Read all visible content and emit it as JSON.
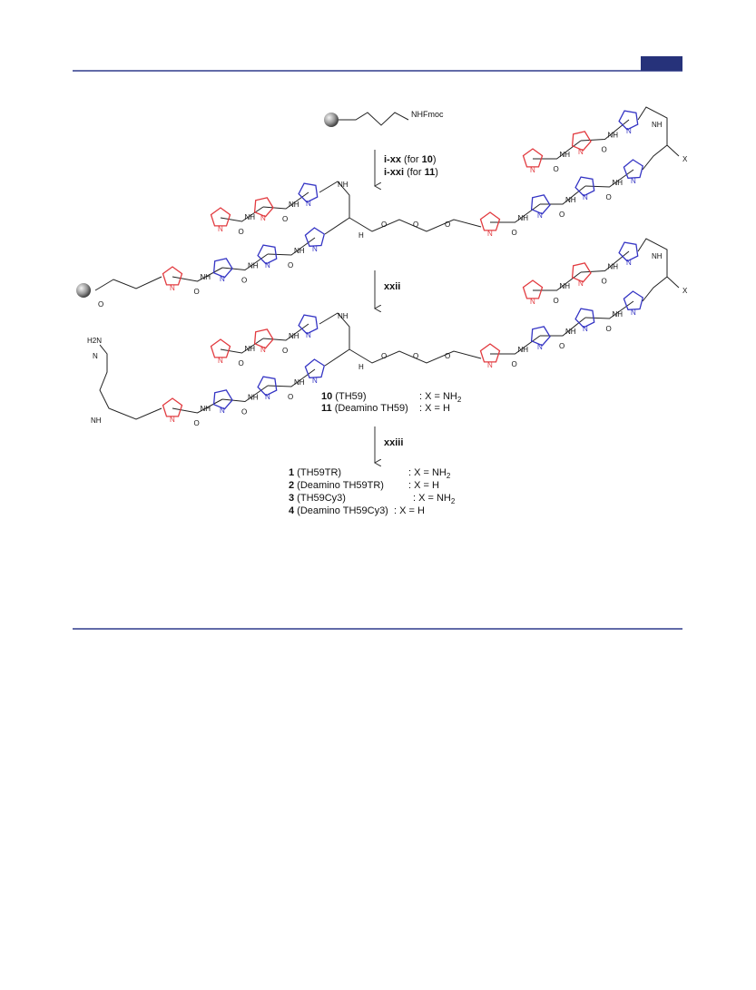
{
  "scheme": {
    "atoms": {
      "start": "NHFmoc",
      "x": "X",
      "nh": "NH",
      "h": "H",
      "n": "N",
      "o": "O",
      "amine": "H2N"
    },
    "steps": [
      [
        {
          "text": "i-xx",
          "bold": true
        },
        {
          "text": " (for "
        },
        {
          "text": "10",
          "bold": true
        },
        {
          "text": ")"
        }
      ],
      [
        {
          "text": "i-xxi",
          "bold": true
        },
        {
          "text": " (for "
        },
        {
          "text": "11",
          "bold": true
        },
        {
          "text": ")"
        }
      ],
      [
        {
          "text": "xxii",
          "bold": true
        }
      ],
      [
        {
          "text": "xxiii",
          "bold": true
        }
      ]
    ],
    "intermediates": [
      {
        "id": "10",
        "name": " (TH59)",
        "formula": ": X = NH",
        "sub": "2"
      },
      {
        "id": "11",
        "name": " (Deamino TH59)",
        "formula": ": X = H"
      }
    ],
    "products": [
      {
        "id": "1",
        "name": " (TH59TR)",
        "formula": ": X = NH",
        "sub": "2"
      },
      {
        "id": "2",
        "name": " (Deamino TH59TR)",
        "formula": ": X = H"
      },
      {
        "id": "3",
        "name": " (TH59Cy3)",
        "formula": ": X = NH",
        "sub": "2"
      },
      {
        "id": "4",
        "name": " (Deamino TH59Cy3)",
        "formula": ": X = H"
      }
    ]
  }
}
